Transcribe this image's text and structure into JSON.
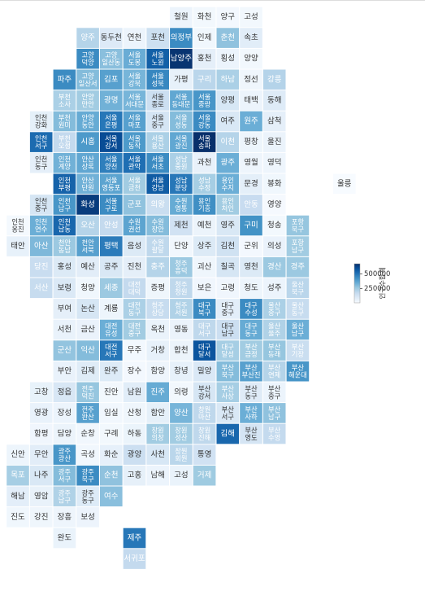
{
  "chart_data": {
    "type": "tilemap",
    "colorbar_title": "인구수합계",
    "colormap": [
      "#f7fbff",
      "#deebf7",
      "#c6dbef",
      "#9ecae1",
      "#6baed6",
      "#4292c6",
      "#2171b5",
      "#08519c",
      "#08306b"
    ],
    "zlim": [
      10000,
      670000
    ],
    "zticks": [
      250000,
      500000
    ],
    "rows": [
      [
        null,
        null,
        null,
        null,
        null,
        null,
        null,
        "철원",
        "화천",
        "양구",
        "고성"
      ],
      [
        null,
        null,
        null,
        "양주",
        "동두천",
        "연천",
        "포천",
        "의정부",
        "인제",
        "춘천",
        "속초"
      ],
      [
        null,
        null,
        null,
        "고양 덕양",
        "고양 일산동",
        "서울 도봉",
        "서울 노원",
        "남양주",
        "홍천",
        "횡성",
        "양양"
      ],
      [
        null,
        null,
        "파주",
        "고양 일산서",
        "김포",
        "서울 강북",
        "서울 성북",
        "가평",
        "구리",
        "하남",
        "정선",
        "강릉"
      ],
      [
        null,
        null,
        "부천 소사",
        "안양 만안",
        "광명",
        "서울 서대문",
        "서울 종로",
        "서울 동대문",
        "서울 중랑",
        "양평",
        "태백",
        "동해"
      ],
      [
        null,
        "인천 강화",
        "부천 원미",
        "안양 동안",
        "서울 은평",
        "서울 마포",
        "서울 중구",
        "서울 성동",
        "서울 강동",
        "여주",
        "원주",
        "삼척"
      ],
      [
        null,
        "인천 서구",
        "부천 오정",
        "시흥",
        "서울 강서",
        "서울 동작",
        "서울 용산",
        "서울 광진",
        "서울 송파",
        "이천",
        "평창",
        "울진"
      ],
      [
        null,
        "인천 동구",
        "인천 계양",
        "안산 상록",
        "서울 양천",
        "서울 관악",
        "서울 서초",
        "성남 중원",
        "과천",
        "광주",
        "영월",
        "영덕"
      ],
      [
        null,
        null,
        "인천 부평",
        "안산 단원",
        "서울 영등포",
        "서울 금천",
        "서울 강남",
        "성남 분당",
        "성남 수정",
        "용인 수지",
        "문경",
        "봉화",
        null,
        null,
        "울릉"
      ],
      [
        null,
        "인천 중구",
        "인천 남구",
        "화성",
        "서울 구로",
        "군포",
        "의왕",
        "수원 영통",
        "용인 기흥",
        "용인 처인",
        "안동",
        "영양"
      ],
      [
        "인천 옹진",
        "인천 연수",
        "인천 남동",
        "오산",
        "안성",
        "수원 권선",
        "수원 장안",
        "제천",
        "예천",
        "영주",
        "구미",
        "청송",
        "포항 북구"
      ],
      [
        "태안",
        "아산",
        "천안 동남",
        "천안 서북",
        "평택",
        "음성",
        "수원 팔달",
        "단양",
        "상주",
        "김천",
        "군위",
        "의성",
        "포항 남구"
      ],
      [
        null,
        "당진",
        "홍성",
        "예산",
        "공주",
        "진천",
        "충주",
        "청주 흥덕",
        "괴산",
        "칠곡",
        "영천",
        "경산",
        "경주"
      ],
      [
        null,
        "서산",
        "보령",
        "청양",
        "세종",
        "대전 대덕",
        "증평",
        "청주 청원",
        "보은",
        "고령",
        "청도",
        "성주",
        "울산 북구"
      ],
      [
        null,
        null,
        "부여",
        "논산",
        "계룡",
        "대전 동구",
        "청주 상당",
        "청주 서원",
        "대구 북구",
        "대구 중구",
        "대구 수성",
        "울산 중구",
        "울산 동구"
      ],
      [
        null,
        null,
        "서천",
        "금산",
        "대전 유성",
        "대전 중구",
        "옥천",
        "영동",
        "대구 서구",
        "대구 남구",
        "대구 동구",
        "울산 울주",
        "울산 남구"
      ],
      [
        null,
        null,
        "군산",
        "익산",
        "대전 서구",
        "무주",
        "거창",
        "합천",
        "대구 달서",
        "대구 달성",
        "부산 금정",
        "부산 동래",
        "부산 기장"
      ],
      [
        null,
        null,
        "부안",
        "김제",
        "완주",
        "장수",
        "함양",
        "창녕",
        "밀양",
        "부산 북구",
        "부산 부산진",
        "부산 연제",
        "부산 해운대"
      ],
      [
        null,
        "고창",
        "정읍",
        "전주 덕진",
        "진안",
        "남원",
        "진주",
        "의령",
        "부산 강서",
        "부산 사상",
        "부산 동구",
        "부산 중구"
      ],
      [
        null,
        "영광",
        "장성",
        "전주 완산",
        "임실",
        "산청",
        "함안",
        "양산",
        "창원 마산",
        "부산 서구",
        "부산 사하",
        "부산 남구"
      ],
      [
        null,
        "함평",
        "담양",
        "순창",
        "구례",
        "하동",
        "창원 의창",
        "창원 성산",
        "창원 진해",
        "김해",
        "부산 영도",
        "부산 수영"
      ],
      [
        "신안",
        "무안",
        "광주 광산",
        "곡성",
        "화순",
        "광양",
        "사천",
        "창원 회원",
        "통영"
      ],
      [
        "목포",
        "나주",
        "광주 서구",
        "광주 북구",
        "순천",
        "고흥",
        "남해",
        "고성",
        "거제"
      ],
      [
        "해남",
        "영암",
        "광주 남구",
        "광주 동구",
        "여수"
      ],
      [
        "진도",
        "강진",
        "장흥",
        "보성"
      ],
      [
        null,
        null,
        "완도",
        null,
        null,
        "제주"
      ],
      [
        null,
        null,
        null,
        null,
        null,
        "서귀포"
      ]
    ],
    "values": [
      [
        null,
        null,
        null,
        null,
        null,
        null,
        null,
        46000,
        26000,
        24000,
        28000
      ],
      [
        null,
        null,
        null,
        210000,
        97000,
        45000,
        150000,
        440000,
        33000,
        280000,
        82000
      ],
      [
        null,
        null,
        null,
        440000,
        290000,
        345000,
        550000,
        660000,
        70000,
        46000,
        28000
      ],
      [
        null,
        null,
        440000,
        300000,
        380000,
        320000,
        450000,
        63000,
        200000,
        230000,
        38000,
        213000
      ],
      [
        null,
        null,
        230000,
        250000,
        330000,
        320000,
        155000,
        360000,
        410000,
        115000,
        46000,
        92000
      ],
      [
        null,
        68000,
        300000,
        350000,
        490000,
        380000,
        125000,
        300000,
        440000,
        110000,
        340000,
        70000
      ],
      [
        null,
        520000,
        180000,
        400000,
        600000,
        400000,
        230000,
        360000,
        670000,
        210000,
        43000,
        51000
      ],
      [
        null,
        70000,
        330000,
        360000,
        470000,
        510000,
        440000,
        230000,
        60000,
        340000,
        40000,
        39000
      ],
      [
        null,
        null,
        540000,
        330000,
        370000,
        250000,
        560000,
        490000,
        240000,
        340000,
        74000,
        33000,
        null,
        null,
        10000
      ],
      [
        null,
        120000,
        410000,
        640000,
        440000,
        280000,
        160000,
        350000,
        430000,
        250000,
        168000,
        18000
      ],
      [
        21000,
        340000,
        530000,
        210000,
        180000,
        370000,
        300000,
        137000,
        47000,
        110000,
        420000,
        26000,
        270000
      ],
      [
        64000,
        310000,
        260000,
        380000,
        480000,
        100000,
        190000,
        30000,
        100000,
        140000,
        24000,
        54000,
        250000
      ],
      [
        null,
        165000,
        100000,
        80000,
        110000,
        70000,
        210000,
        260000,
        38000,
        120000,
        100000,
        260000,
        260000
      ],
      [
        null,
        170000,
        103000,
        32000,
        260000,
        180000,
        37000,
        190000,
        34000,
        34000,
        43000,
        45000,
        200000
      ],
      [
        null,
        null,
        70000,
        120000,
        43000,
        230000,
        170000,
        220000,
        440000,
        77000,
        440000,
        230000,
        170000
      ],
      [
        null,
        null,
        55000,
        54000,
        340000,
        250000,
        52000,
        50000,
        190000,
        155000,
        350000,
        220000,
        340000
      ],
      [
        null,
        null,
        275000,
        300000,
        490000,
        25000,
        62000,
        47000,
        580000,
        240000,
        250000,
        270000,
        160000
      ],
      [
        null,
        null,
        55000,
        88000,
        95000,
        23000,
        40000,
        63000,
        107000,
        300000,
        380000,
        210000,
        410000
      ],
      [
        null,
        58000,
        113000,
        270000,
        26000,
        83000,
        350000,
        28000,
        120000,
        240000,
        90000,
        45000
      ],
      [
        null,
        55000,
        46000,
        380000,
        30000,
        36000,
        68000,
        320000,
        190000,
        110000,
        340000,
        280000
      ],
      [
        null,
        34000,
        47000,
        30000,
        27000,
        48000,
        250000,
        250000,
        190000,
        530000,
        125000,
        180000
      ],
      [
        42000,
        80000,
        410000,
        30000,
        65000,
        155000,
        115000,
        200000,
        137000
      ],
      [
        240000,
        110000,
        300000,
        440000,
        280000,
        67000,
        45000,
        53000,
        255000
      ],
      [
        75000,
        57000,
        220000,
        95000,
        290000
      ],
      [
        32000,
        38000,
        40000,
        44000
      ],
      [
        null,
        null,
        52000,
        null,
        null,
        490000
      ],
      [
        null,
        null,
        null,
        null,
        null,
        180000
      ]
    ]
  }
}
